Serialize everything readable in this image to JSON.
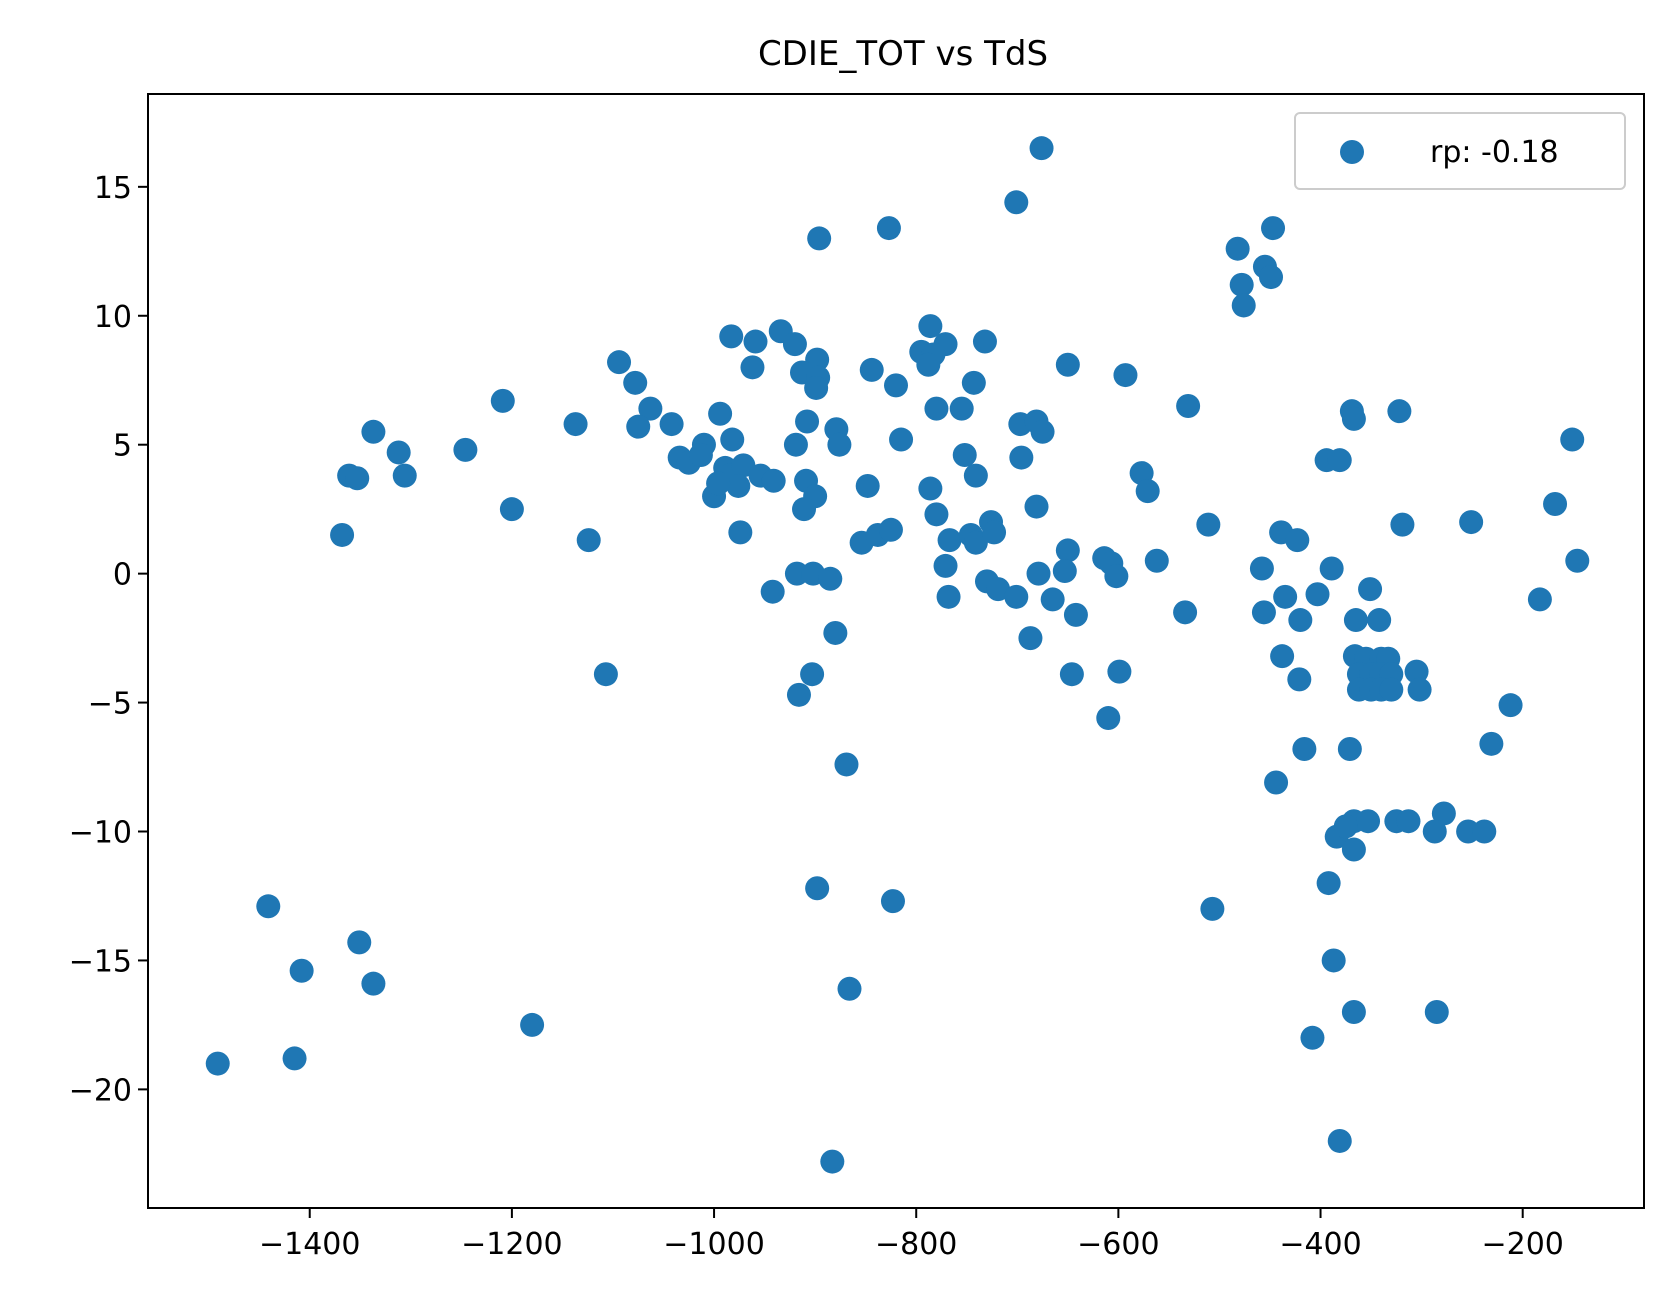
{
  "chart_data": {
    "type": "scatter",
    "title": "CDIE_TOT vs TdS",
    "xlabel": "",
    "ylabel": "",
    "xlim": [
      -1560,
      -80
    ],
    "ylim": [
      -24.6,
      18.6
    ],
    "xticks": [
      -1400,
      -1200,
      -1000,
      -800,
      -600,
      -400,
      -200
    ],
    "yticks": [
      -20,
      -15,
      -10,
      -5,
      0,
      5,
      10,
      15
    ],
    "xtick_labels": [
      "−1400",
      "−1200",
      "−1000",
      "−800",
      "−600",
      "−400",
      "−200"
    ],
    "ytick_labels": [
      "−20",
      "−15",
      "−10",
      "−5",
      "0",
      "5",
      "10",
      "15"
    ],
    "grid": false,
    "legend_position": "top-right",
    "series": [
      {
        "name": "rp: -0.18",
        "color": "#1f77b4",
        "points": [
          [
            -676,
            16.5
          ],
          [
            -701,
            14.4
          ],
          [
            -896,
            13.0
          ],
          [
            -827,
            13.4
          ],
          [
            -447,
            13.4
          ],
          [
            -482,
            12.6
          ],
          [
            -455,
            11.9
          ],
          [
            -478,
            11.2
          ],
          [
            -449,
            11.5
          ],
          [
            -476,
            10.4
          ],
          [
            -786,
            9.6
          ],
          [
            -983,
            9.2
          ],
          [
            -959,
            9.0
          ],
          [
            -934,
            9.4
          ],
          [
            -920,
            8.9
          ],
          [
            -732,
            9.0
          ],
          [
            -771,
            8.9
          ],
          [
            -795,
            8.6
          ],
          [
            -783,
            8.5
          ],
          [
            -788,
            8.1
          ],
          [
            -1094,
            8.2
          ],
          [
            -962,
            8.0
          ],
          [
            -898,
            8.3
          ],
          [
            -913,
            7.8
          ],
          [
            -897,
            7.6
          ],
          [
            -650,
            8.1
          ],
          [
            -593,
            7.7
          ],
          [
            -1078,
            7.4
          ],
          [
            -899,
            7.2
          ],
          [
            -844,
            7.9
          ],
          [
            -820,
            7.3
          ],
          [
            -743,
            7.4
          ],
          [
            -1209,
            6.7
          ],
          [
            -1063,
            6.4
          ],
          [
            -994,
            6.2
          ],
          [
            -780,
            6.4
          ],
          [
            -755,
            6.4
          ],
          [
            -531,
            6.5
          ],
          [
            -369,
            6.3
          ],
          [
            -322,
            6.3
          ],
          [
            -1337,
            5.5
          ],
          [
            -1312,
            4.7
          ],
          [
            -1246,
            4.8
          ],
          [
            -1137,
            5.8
          ],
          [
            -1075,
            5.7
          ],
          [
            -1042,
            5.8
          ],
          [
            -1010,
            5.0
          ],
          [
            -982,
            5.2
          ],
          [
            -908,
            5.9
          ],
          [
            -879,
            5.6
          ],
          [
            -876,
            5.0
          ],
          [
            -919,
            5.0
          ],
          [
            -815,
            5.2
          ],
          [
            -697,
            5.8
          ],
          [
            -681,
            5.9
          ],
          [
            -675,
            5.5
          ],
          [
            -367,
            6.0
          ],
          [
            -151,
            5.2
          ],
          [
            -1361,
            3.8
          ],
          [
            -1353,
            3.7
          ],
          [
            -1306,
            3.8
          ],
          [
            -1034,
            4.5
          ],
          [
            -1025,
            4.3
          ],
          [
            -1013,
            4.6
          ],
          [
            -989,
            4.1
          ],
          [
            -985,
            3.8
          ],
          [
            -971,
            4.2
          ],
          [
            -976,
            3.4
          ],
          [
            -954,
            3.8
          ],
          [
            -941,
            3.6
          ],
          [
            -909,
            3.6
          ],
          [
            -900,
            3.0
          ],
          [
            -1000,
            3.0
          ],
          [
            -996,
            3.5
          ],
          [
            -848,
            3.4
          ],
          [
            -786,
            3.3
          ],
          [
            -780,
            2.3
          ],
          [
            -752,
            4.6
          ],
          [
            -741,
            3.8
          ],
          [
            -696,
            4.5
          ],
          [
            -681,
            2.6
          ],
          [
            -577,
            3.9
          ],
          [
            -571,
            3.2
          ],
          [
            -394,
            4.4
          ],
          [
            -381,
            4.4
          ],
          [
            -168,
            2.7
          ],
          [
            -1368,
            1.5
          ],
          [
            -1200,
            2.5
          ],
          [
            -1124,
            1.3
          ],
          [
            -974,
            1.6
          ],
          [
            -911,
            2.5
          ],
          [
            -854,
            1.2
          ],
          [
            -838,
            1.5
          ],
          [
            -825,
            1.7
          ],
          [
            -767,
            1.3
          ],
          [
            -746,
            1.5
          ],
          [
            -741,
            1.2
          ],
          [
            -726,
            2.0
          ],
          [
            -723,
            1.6
          ],
          [
            -650,
            0.9
          ],
          [
            -614,
            0.6
          ],
          [
            -607,
            0.4
          ],
          [
            -562,
            0.5
          ],
          [
            -511,
            1.9
          ],
          [
            -439,
            1.6
          ],
          [
            -423,
            1.3
          ],
          [
            -319,
            1.9
          ],
          [
            -251,
            2.0
          ],
          [
            -146,
            0.5
          ],
          [
            -918,
            0.0
          ],
          [
            -902,
            0.0
          ],
          [
            -885,
            -0.2
          ],
          [
            -942,
            -0.7
          ],
          [
            -771,
            0.3
          ],
          [
            -730,
            -0.3
          ],
          [
            -719,
            -0.6
          ],
          [
            -701,
            -0.9
          ],
          [
            -679,
            0.0
          ],
          [
            -665,
            -1.0
          ],
          [
            -653,
            0.1
          ],
          [
            -642,
            -1.6
          ],
          [
            -602,
            -0.1
          ],
          [
            -458,
            0.2
          ],
          [
            -435,
            -0.9
          ],
          [
            -403,
            -0.8
          ],
          [
            -389,
            0.2
          ],
          [
            -351,
            -0.6
          ],
          [
            -768,
            -0.9
          ],
          [
            -534,
            -1.5
          ],
          [
            -456,
            -1.5
          ],
          [
            -420,
            -1.8
          ],
          [
            -365,
            -1.8
          ],
          [
            -342,
            -1.8
          ],
          [
            -183,
            -1.0
          ],
          [
            -880,
            -2.3
          ],
          [
            -687,
            -2.5
          ],
          [
            -1107,
            -3.9
          ],
          [
            -903,
            -3.9
          ],
          [
            -916,
            -4.7
          ],
          [
            -646,
            -3.9
          ],
          [
            -599,
            -3.8
          ],
          [
            -438,
            -3.2
          ],
          [
            -421,
            -4.1
          ],
          [
            -366,
            -3.2
          ],
          [
            -355,
            -3.3
          ],
          [
            -340,
            -3.3
          ],
          [
            -333,
            -3.3
          ],
          [
            -362,
            -3.9
          ],
          [
            -350,
            -3.9
          ],
          [
            -340,
            -3.9
          ],
          [
            -330,
            -3.9
          ],
          [
            -362,
            -4.5
          ],
          [
            -350,
            -4.5
          ],
          [
            -340,
            -4.5
          ],
          [
            -330,
            -4.5
          ],
          [
            -305,
            -3.8
          ],
          [
            -302,
            -4.5
          ],
          [
            -610,
            -5.6
          ],
          [
            -212,
            -5.1
          ],
          [
            -416,
            -6.8
          ],
          [
            -371,
            -6.8
          ],
          [
            -231,
            -6.6
          ],
          [
            -869,
            -7.4
          ],
          [
            -444,
            -8.1
          ],
          [
            -278,
            -9.3
          ],
          [
            -367,
            -9.6
          ],
          [
            -353,
            -9.6
          ],
          [
            -325,
            -9.6
          ],
          [
            -313,
            -9.6
          ],
          [
            -384,
            -10.2
          ],
          [
            -375,
            -9.8
          ],
          [
            -287,
            -10.0
          ],
          [
            -254,
            -10.0
          ],
          [
            -238,
            -10.0
          ],
          [
            -367,
            -10.7
          ],
          [
            -1441,
            -12.9
          ],
          [
            -898,
            -12.2
          ],
          [
            -823,
            -12.7
          ],
          [
            -507,
            -13.0
          ],
          [
            -392,
            -12.0
          ],
          [
            -1351,
            -14.3
          ],
          [
            -1337,
            -15.9
          ],
          [
            -1408,
            -15.4
          ],
          [
            -1180,
            -17.5
          ],
          [
            -866,
            -16.1
          ],
          [
            -387,
            -15.0
          ],
          [
            -367,
            -17.0
          ],
          [
            -285,
            -17.0
          ],
          [
            -1491,
            -19.0
          ],
          [
            -1415,
            -18.8
          ],
          [
            -408,
            -18.0
          ],
          [
            -381,
            -22.0
          ],
          [
            -883,
            -22.8
          ]
        ]
      }
    ]
  }
}
